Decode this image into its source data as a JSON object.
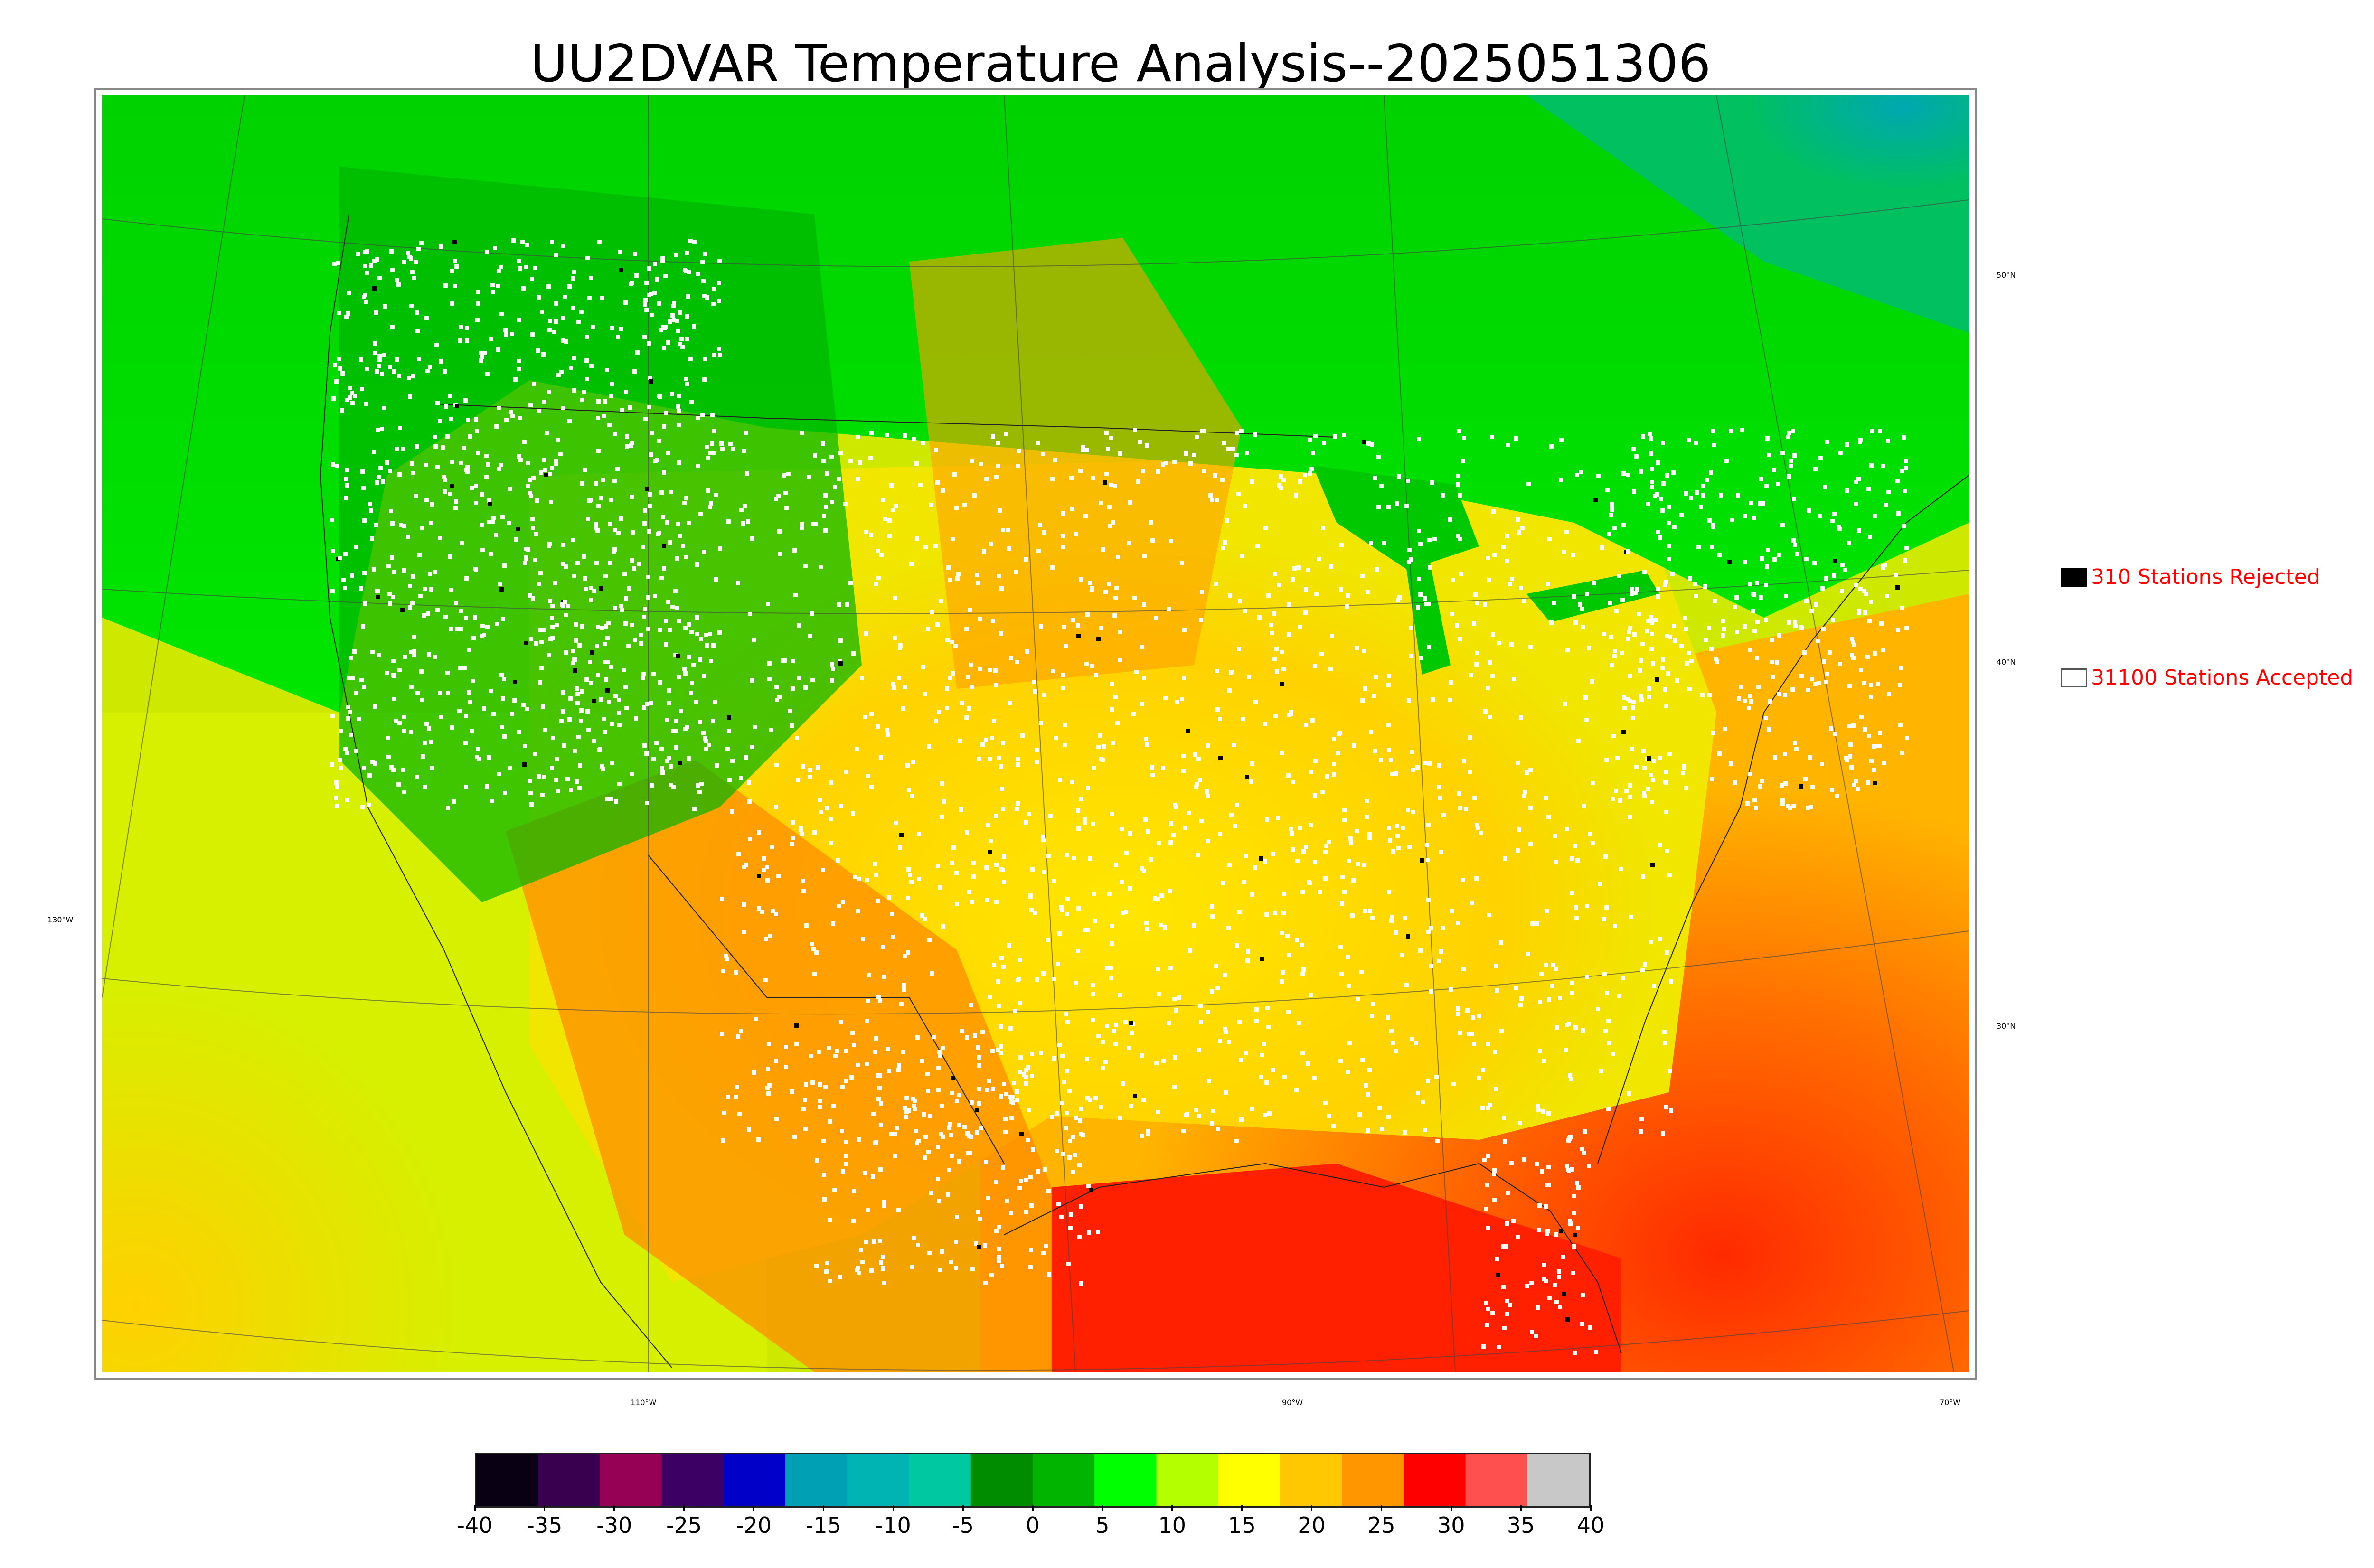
{
  "title": "UU2DVAR Temperature Analysis--2025051306",
  "legend": {
    "rejected": "310 Stations Rejected",
    "accepted": "31100 Stations Accepted"
  },
  "lat_labels": [
    "50°N",
    "40°N",
    "30°N"
  ],
  "lon_labels": [
    "130°W",
    "110°W",
    "90°W",
    "70°W"
  ],
  "colorbar": {
    "ticks": [
      "-40",
      "-35",
      "-30",
      "-25",
      "-20",
      "-15",
      "-10",
      "-5",
      "0",
      "5",
      "10",
      "15",
      "20",
      "25",
      "30",
      "35",
      "40"
    ],
    "colors": [
      "#0a0014",
      "#3a0050",
      "#960055",
      "#3c0064",
      "#0000c8",
      "#00a0b4",
      "#00b4b4",
      "#00c8a0",
      "#008c00",
      "#00b400",
      "#00ff00",
      "#b4ff00",
      "#ffff00",
      "#ffc800",
      "#ff9600",
      "#ff0000",
      "#ff5050",
      "#c8c8c8"
    ]
  },
  "colors": {
    "rejected_station": "#000000",
    "accepted_station": "#ffffff",
    "legend_text": "#ff0000"
  }
}
